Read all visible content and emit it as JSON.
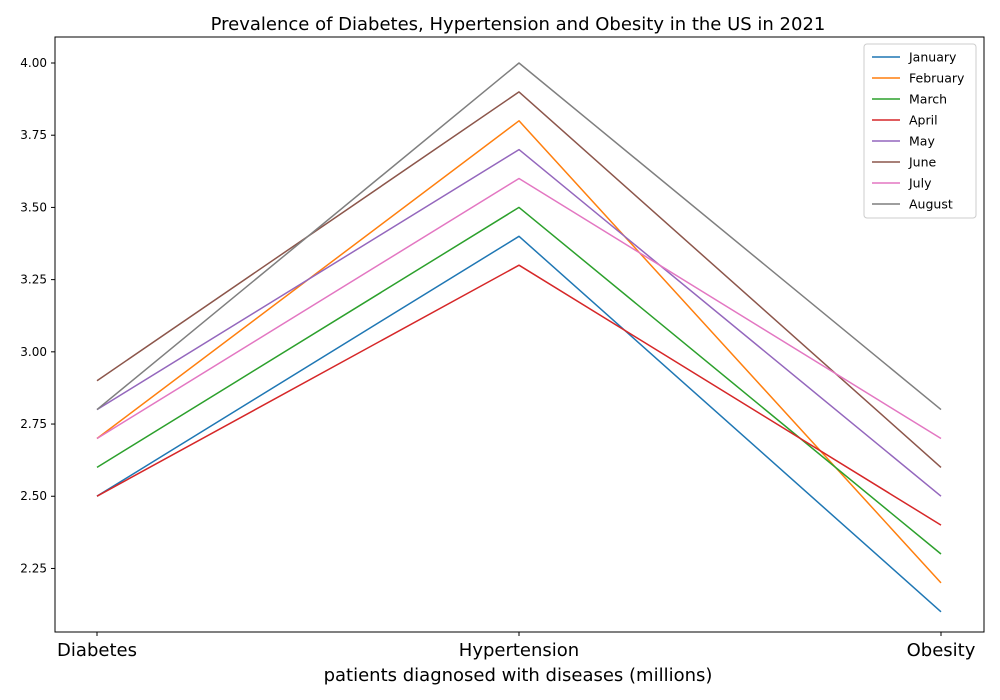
{
  "chart_data": {
    "type": "line",
    "title": "Prevalence of Diabetes, Hypertension and Obesity in the US in 2021",
    "xlabel": "patients diagnosed with diseases (millions)",
    "ylabel": "",
    "categories": [
      "Diabetes",
      "Hypertension",
      "Obesity"
    ],
    "ylim": [
      2.03,
      4.09
    ],
    "yticks": [
      "2.25",
      "2.50",
      "2.75",
      "3.00",
      "3.25",
      "3.50",
      "3.75",
      "4.00"
    ],
    "grid": false,
    "legend_position": "top-right",
    "series": [
      {
        "name": "January",
        "color": "#1f77b4",
        "values": [
          2.5,
          3.4,
          2.1
        ]
      },
      {
        "name": "February",
        "color": "#ff7f0e",
        "values": [
          2.7,
          3.8,
          2.2
        ]
      },
      {
        "name": "March",
        "color": "#2ca02c",
        "values": [
          2.6,
          3.5,
          2.3
        ]
      },
      {
        "name": "April",
        "color": "#d62728",
        "values": [
          2.5,
          3.3,
          2.4
        ]
      },
      {
        "name": "May",
        "color": "#9467bd",
        "values": [
          2.8,
          3.7,
          2.5
        ]
      },
      {
        "name": "June",
        "color": "#8c564b",
        "values": [
          2.9,
          3.9,
          2.6
        ]
      },
      {
        "name": "July",
        "color": "#e377c2",
        "values": [
          2.7,
          3.6,
          2.7
        ]
      },
      {
        "name": "August",
        "color": "#7f7f7f",
        "values": [
          2.8,
          4.0,
          2.8
        ]
      }
    ]
  }
}
